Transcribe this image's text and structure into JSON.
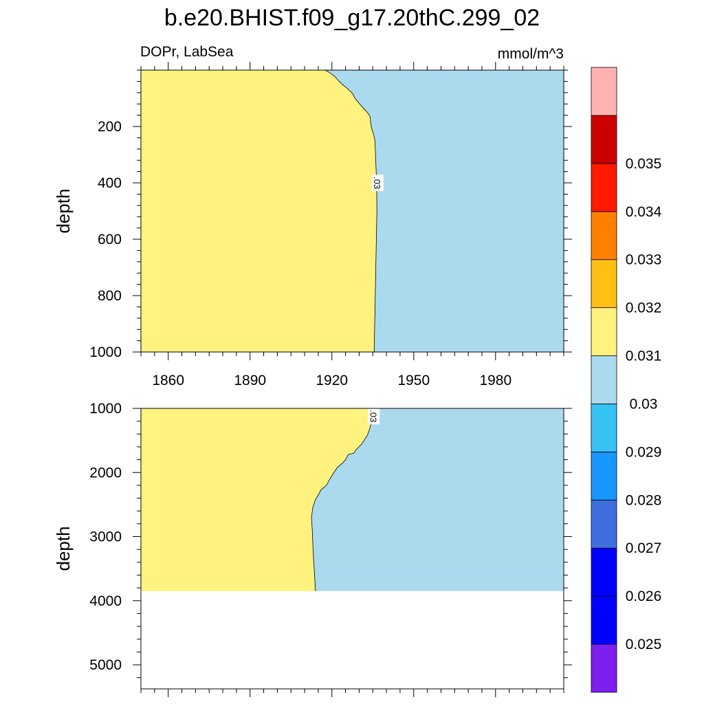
{
  "figure": {
    "title": "b.e20.BHIST.f09_g17.20thC.299_02",
    "left_subtitle": "DOPr, LabSea",
    "right_subtitle": "mmol/m^3"
  },
  "chart_data": [
    {
      "type": "heatmap",
      "panel": "upper",
      "ylabel": "depth",
      "xlim": [
        1850,
        2005
      ],
      "ylim": [
        0,
        1000
      ],
      "y_reversed": true,
      "x_ticks": [
        1860,
        1890,
        1920,
        1950,
        1980
      ],
      "y_ticks": [
        200,
        400,
        600,
        800,
        1000
      ],
      "fill_colors": {
        "above": "#fff27f",
        "below": "#abdaef"
      },
      "contour": {
        "level_label": ".03",
        "points": [
          [
            1917.5,
            0
          ],
          [
            1919,
            8
          ],
          [
            1921,
            22
          ],
          [
            1922.5,
            38
          ],
          [
            1924,
            52
          ],
          [
            1926,
            68
          ],
          [
            1927.5,
            82
          ],
          [
            1928.5,
            100
          ],
          [
            1930,
            118
          ],
          [
            1931.5,
            135
          ],
          [
            1933,
            150
          ],
          [
            1934,
            165
          ],
          [
            1934.2,
            185
          ],
          [
            1934.5,
            205
          ],
          [
            1935.2,
            225
          ],
          [
            1935.8,
            250
          ],
          [
            1936,
            300
          ],
          [
            1936.2,
            350
          ],
          [
            1936.4,
            400
          ],
          [
            1936.5,
            500
          ],
          [
            1936.3,
            600
          ],
          [
            1936.1,
            700
          ],
          [
            1935.9,
            800
          ],
          [
            1935.7,
            900
          ],
          [
            1935.5,
            1000
          ]
        ]
      }
    },
    {
      "type": "heatmap",
      "panel": "lower",
      "ylabel": "depth",
      "xlim": [
        1850,
        2005
      ],
      "ylim": [
        1000,
        5375
      ],
      "y_reversed": true,
      "bottom_of_data": 3850,
      "x_ticks": [
        1860,
        1890,
        1920,
        1950,
        1980
      ],
      "y_ticks": [
        1000,
        2000,
        3000,
        4000,
        5000
      ],
      "fill_colors": {
        "above": "#fff27f",
        "below": "#abdaef"
      },
      "contour": {
        "level_label": ".03",
        "points": [
          [
            1935.5,
            1000
          ],
          [
            1935,
            1120
          ],
          [
            1934,
            1300
          ],
          [
            1933,
            1420
          ],
          [
            1931,
            1550
          ],
          [
            1929,
            1640
          ],
          [
            1928,
            1700
          ],
          [
            1926,
            1720
          ],
          [
            1925,
            1800
          ],
          [
            1924,
            1850
          ],
          [
            1922,
            1920
          ],
          [
            1920,
            2050
          ],
          [
            1919,
            2120
          ],
          [
            1918,
            2200
          ],
          [
            1916,
            2270
          ],
          [
            1915,
            2350
          ],
          [
            1914,
            2420
          ],
          [
            1913,
            2550
          ],
          [
            1912.5,
            2700
          ],
          [
            1912.8,
            2900
          ],
          [
            1913,
            3100
          ],
          [
            1913.2,
            3300
          ],
          [
            1913.5,
            3500
          ],
          [
            1913.8,
            3700
          ],
          [
            1914,
            3850
          ]
        ]
      }
    },
    {
      "type": "colorbar",
      "levels": [
        "0.025",
        "0.026",
        "0.027",
        "0.028",
        "0.029",
        "0.03",
        "0.031",
        "0.032",
        "0.033",
        "0.034",
        "0.035"
      ],
      "colors": [
        "#7f1fef",
        "#0000ff",
        "#0000ff",
        "#3f6fdf",
        "#1796ff",
        "#37c2f4",
        "#abdaef",
        "#fff27f",
        "#ffbf13",
        "#ff7f00",
        "#ff1a00",
        "#cc0000",
        "#ffb2b2"
      ]
    }
  ]
}
